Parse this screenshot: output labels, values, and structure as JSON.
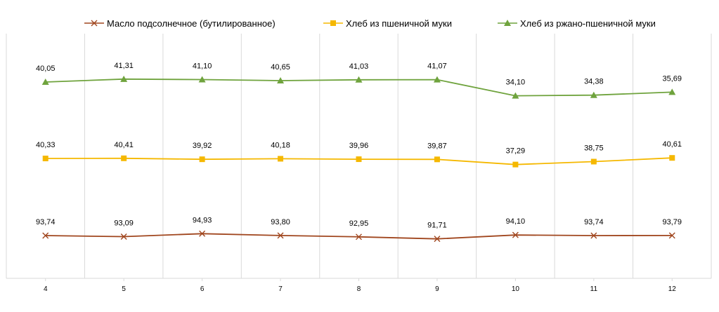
{
  "chart_data": {
    "type": "line",
    "categories": [
      "4",
      "5",
      "6",
      "7",
      "8",
      "9",
      "10",
      "11",
      "12"
    ],
    "legend_position": "top",
    "grid": "vertical",
    "series": [
      {
        "name": "Масло подсолнечное (бутилированное)",
        "color": "#a0461e",
        "marker": "x",
        "values": [
          93.74,
          93.09,
          94.93,
          93.8,
          92.95,
          91.71,
          94.1,
          93.74,
          93.79
        ],
        "labels": [
          "93,74",
          "93,09",
          "94,93",
          "93,80",
          "92,95",
          "91,71",
          "94,10",
          "93,74",
          "93,79"
        ]
      },
      {
        "name": "Хлеб из пшеничной муки",
        "color": "#f5b800",
        "marker": "square",
        "values": [
          40.33,
          40.41,
          39.92,
          40.18,
          39.96,
          39.87,
          37.29,
          38.75,
          40.61
        ],
        "labels": [
          "40,33",
          "40,41",
          "39,92",
          "40,18",
          "39,96",
          "39,87",
          "37,29",
          "38,75",
          "40,61"
        ]
      },
      {
        "name": "Хлеб из ржано-пшеничной муки",
        "color": "#6fa33d",
        "marker": "triangle",
        "values": [
          40.05,
          41.31,
          41.1,
          40.65,
          41.03,
          41.07,
          34.1,
          34.38,
          35.69
        ],
        "labels": [
          "40,05",
          "41,31",
          "41,10",
          "40,65",
          "41,03",
          "41,07",
          "34,10",
          "34,38",
          "35,69"
        ]
      }
    ]
  }
}
